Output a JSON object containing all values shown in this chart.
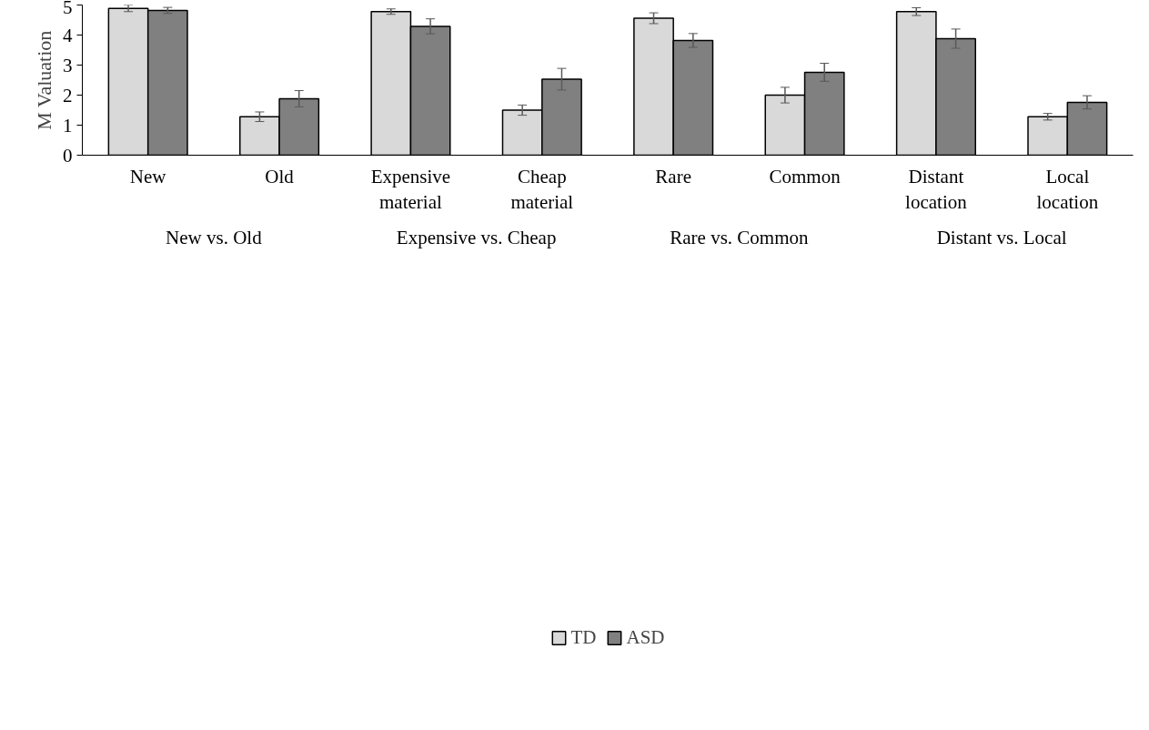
{
  "chart_data": {
    "type": "bar",
    "ylabel": "M Valuation",
    "categories": [
      "New",
      "Old",
      "Expensive\nmaterial",
      "Cheap\nmaterial",
      "Rare",
      "Common",
      "Distant\nlocation",
      "Local\nlocation"
    ],
    "series": [
      {
        "name": "TD",
        "color": "#d9d9d9",
        "values": [
          4.89,
          1.28,
          4.78,
          1.5,
          4.56,
          2.0,
          4.78,
          1.28
        ],
        "errors": [
          0.11,
          0.16,
          0.09,
          0.17,
          0.18,
          0.26,
          0.13,
          0.11
        ]
      },
      {
        "name": "ASD",
        "color": "#808080",
        "values": [
          4.82,
          1.88,
          4.29,
          2.53,
          3.82,
          2.76,
          3.88,
          1.76
        ],
        "errors": [
          0.1,
          0.27,
          0.25,
          0.36,
          0.23,
          0.3,
          0.32,
          0.22
        ]
      }
    ],
    "annotations": [
      "New vs. Old",
      "Expensive vs. Cheap",
      "Rare vs. Common",
      "Distant vs. Local"
    ],
    "ylim": [
      0,
      5
    ],
    "yticks": [
      0,
      1,
      2,
      3,
      4,
      5
    ],
    "grid": false,
    "legend": "bottom"
  }
}
